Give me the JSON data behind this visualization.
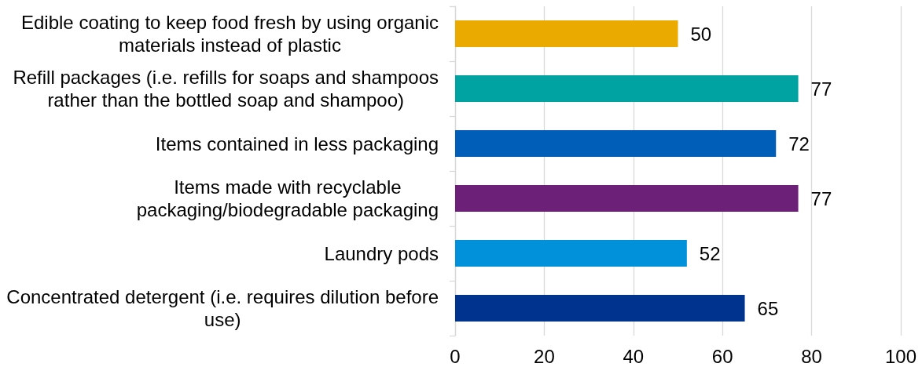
{
  "chart_data": {
    "type": "bar",
    "orientation": "horizontal",
    "categories": [
      "Edible coating to keep food fresh by using organic materials instead of plastic",
      "Refill packages (i.e. refills for soaps and shampoos rather than the bottled soap and shampoo)",
      "Items contained in less packaging",
      "Items made with recyclable packaging/biodegradable packaging",
      "Laundry pods",
      "Concentrated detergent (i.e. requires dilution before use)"
    ],
    "values": [
      50,
      77,
      72,
      77,
      52,
      65
    ],
    "colors": [
      "#eaaa00",
      "#00a3a1",
      "#005eb8",
      "#6d2077",
      "#0091da",
      "#00338d"
    ],
    "xlim": [
      0,
      100
    ],
    "xticks": [
      0,
      20,
      40,
      60,
      80,
      100
    ],
    "grid": "x",
    "data_labels": true
  }
}
